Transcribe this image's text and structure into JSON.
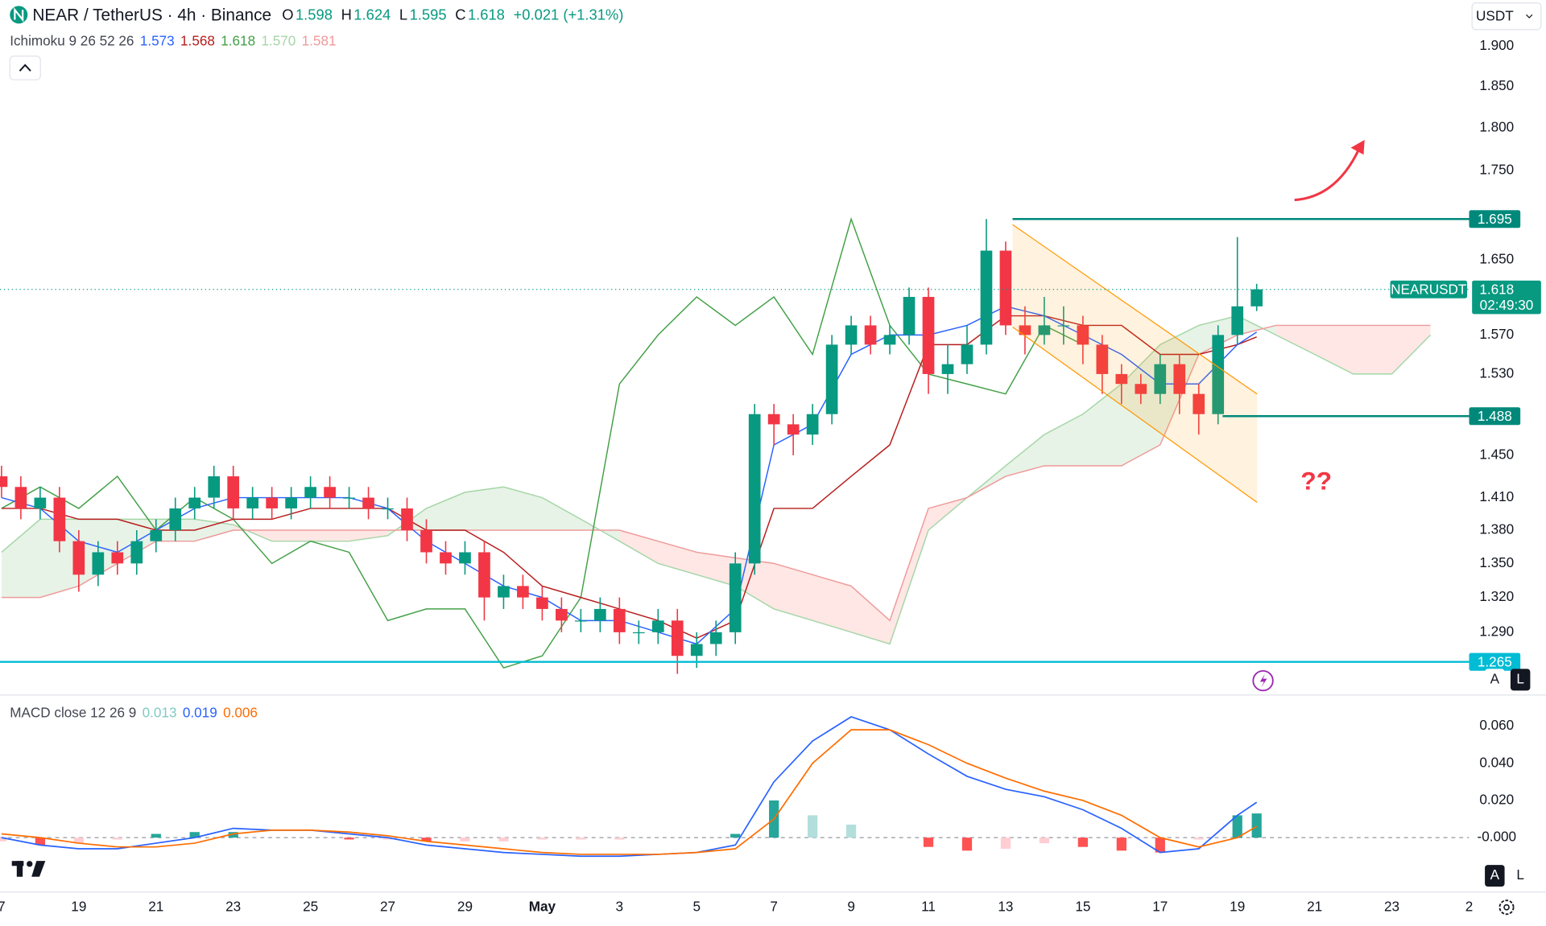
{
  "header": {
    "title": "NEAR / TetherUS · 4h · Binance",
    "ohlc": [
      [
        "O",
        "1.598"
      ],
      [
        "H",
        "1.624"
      ],
      [
        "L",
        "1.595"
      ],
      [
        "C",
        "1.618"
      ]
    ],
    "change": "+0.021 (+1.31%)",
    "currency": "USDT"
  },
  "legends": {
    "ichimoku": {
      "name": "Ichimoku 9 26 52 26",
      "values": [
        "1.573",
        "1.568",
        "1.618",
        "1.570",
        "1.581"
      ],
      "colors": [
        "#2962ff",
        "#b71c1c",
        "#43a047",
        "#a5d6a7",
        "#ef9a9a"
      ]
    },
    "macd": {
      "name": "MACD close 12 26 9",
      "values": [
        "0.013",
        "0.019",
        "0.006"
      ],
      "colors": [
        "#80cbc4",
        "#2962ff",
        "#ff6d00"
      ]
    }
  },
  "annotations": {
    "question": "??"
  },
  "scale_buttons": {
    "main": [
      "A",
      "L"
    ],
    "macd": [
      "A",
      "L"
    ]
  },
  "chart_data": [
    {
      "type": "candlestick",
      "log_scale": true,
      "grid": false,
      "xlim": [
        16.96,
        55.0
      ],
      "ylim": [
        1.238,
        1.959
      ],
      "yticks": [
        {
          "value": 1.9,
          "label": "1.900"
        },
        {
          "value": 1.85,
          "label": "1.850"
        },
        {
          "value": 1.8,
          "label": "1.800"
        },
        {
          "value": 1.75,
          "label": "1.750"
        },
        {
          "value": 1.65,
          "label": "1.650"
        },
        {
          "value": 1.57,
          "label": "1.570"
        },
        {
          "value": 1.53,
          "label": "1.530"
        },
        {
          "value": 1.45,
          "label": "1.450"
        },
        {
          "value": 1.41,
          "label": "1.410"
        },
        {
          "value": 1.38,
          "label": "1.380"
        },
        {
          "value": 1.35,
          "label": "1.350"
        },
        {
          "value": 1.32,
          "label": "1.320"
        },
        {
          "value": 1.29,
          "label": "1.290"
        }
      ],
      "up_color": "#089981",
      "down_color": "#f23645",
      "x": [
        17,
        17.5,
        18,
        18.5,
        19,
        19.5,
        20,
        20.5,
        21,
        21.5,
        22,
        22.5,
        23,
        23.5,
        24,
        24.5,
        25,
        25.5,
        26,
        26.5,
        27,
        27.5,
        28,
        28.5,
        29,
        29.5,
        30,
        30.5,
        31,
        31.5,
        32,
        32.5,
        33,
        33.5,
        34,
        34.5,
        35,
        35.5,
        36,
        36.5,
        37,
        37.5,
        38,
        38.5,
        39,
        39.5,
        40,
        40.5,
        41,
        41.5,
        42,
        42.5,
        43,
        43.5,
        44,
        44.5,
        45,
        45.5,
        46,
        46.5,
        47,
        47.5,
        48,
        48.5,
        49,
        49.5
      ],
      "open": [
        1.43,
        1.42,
        1.4,
        1.41,
        1.37,
        1.34,
        1.36,
        1.35,
        1.37,
        1.38,
        1.4,
        1.41,
        1.43,
        1.4,
        1.41,
        1.4,
        1.41,
        1.42,
        1.41,
        1.41,
        1.4,
        1.4,
        1.38,
        1.36,
        1.35,
        1.36,
        1.32,
        1.33,
        1.32,
        1.31,
        1.3,
        1.3,
        1.31,
        1.29,
        1.29,
        1.3,
        1.27,
        1.28,
        1.29,
        1.35,
        1.49,
        1.48,
        1.47,
        1.49,
        1.56,
        1.58,
        1.56,
        1.57,
        1.61,
        1.53,
        1.54,
        1.56,
        1.66,
        1.58,
        1.57,
        1.58,
        1.58,
        1.56,
        1.53,
        1.52,
        1.51,
        1.54,
        1.51,
        1.49,
        1.57,
        1.6
      ],
      "high": [
        1.44,
        1.43,
        1.42,
        1.42,
        1.38,
        1.37,
        1.37,
        1.38,
        1.39,
        1.41,
        1.42,
        1.44,
        1.44,
        1.42,
        1.42,
        1.42,
        1.43,
        1.43,
        1.42,
        1.42,
        1.41,
        1.41,
        1.39,
        1.37,
        1.37,
        1.37,
        1.34,
        1.34,
        1.33,
        1.32,
        1.31,
        1.32,
        1.32,
        1.3,
        1.31,
        1.31,
        1.29,
        1.3,
        1.36,
        1.5,
        1.5,
        1.49,
        1.5,
        1.57,
        1.59,
        1.59,
        1.58,
        1.62,
        1.62,
        1.56,
        1.58,
        1.695,
        1.67,
        1.6,
        1.61,
        1.6,
        1.59,
        1.57,
        1.54,
        1.53,
        1.55,
        1.55,
        1.52,
        1.58,
        1.675,
        1.624
      ],
      "low": [
        1.41,
        1.39,
        1.39,
        1.36,
        1.325,
        1.33,
        1.34,
        1.34,
        1.36,
        1.37,
        1.39,
        1.4,
        1.39,
        1.39,
        1.39,
        1.39,
        1.4,
        1.4,
        1.4,
        1.39,
        1.39,
        1.37,
        1.35,
        1.34,
        1.34,
        1.3,
        1.31,
        1.31,
        1.3,
        1.29,
        1.29,
        1.29,
        1.28,
        1.28,
        1.28,
        1.255,
        1.26,
        1.27,
        1.28,
        1.34,
        1.46,
        1.45,
        1.46,
        1.48,
        1.55,
        1.55,
        1.55,
        1.56,
        1.51,
        1.51,
        1.53,
        1.55,
        1.57,
        1.55,
        1.56,
        1.56,
        1.54,
        1.51,
        1.5,
        1.5,
        1.5,
        1.49,
        1.47,
        1.48,
        1.56,
        1.595
      ],
      "close": [
        1.42,
        1.4,
        1.41,
        1.37,
        1.34,
        1.36,
        1.35,
        1.37,
        1.38,
        1.4,
        1.41,
        1.43,
        1.4,
        1.41,
        1.4,
        1.41,
        1.42,
        1.41,
        1.41,
        1.4,
        1.4,
        1.38,
        1.36,
        1.35,
        1.36,
        1.32,
        1.33,
        1.32,
        1.31,
        1.3,
        1.3,
        1.31,
        1.29,
        1.29,
        1.3,
        1.27,
        1.28,
        1.29,
        1.35,
        1.49,
        1.48,
        1.47,
        1.49,
        1.56,
        1.58,
        1.56,
        1.57,
        1.61,
        1.53,
        1.54,
        1.56,
        1.66,
        1.58,
        1.57,
        1.58,
        1.58,
        1.56,
        1.53,
        1.52,
        1.51,
        1.54,
        1.51,
        1.49,
        1.57,
        1.6,
        1.618
      ],
      "cloud_colors": {
        "bullish": "rgba(67,160,71,0.13)",
        "bearish": "rgba(244,67,54,0.13)"
      },
      "span_a": {
        "color": "#a5d6a7",
        "x": [
          17,
          18,
          19,
          20,
          21,
          22,
          23,
          24,
          25,
          26,
          27,
          28,
          29,
          30,
          31,
          32,
          33,
          34,
          35,
          36,
          37,
          38,
          39,
          40,
          41,
          42,
          43,
          44,
          45,
          46,
          47,
          48,
          49,
          50,
          51,
          52,
          53,
          54
        ],
        "values": [
          1.36,
          1.39,
          1.39,
          1.39,
          1.39,
          1.39,
          1.385,
          1.37,
          1.37,
          1.37,
          1.375,
          1.4,
          1.415,
          1.42,
          1.41,
          1.39,
          1.37,
          1.35,
          1.34,
          1.33,
          1.31,
          1.3,
          1.29,
          1.28,
          1.38,
          1.41,
          1.44,
          1.47,
          1.49,
          1.52,
          1.56,
          1.58,
          1.59,
          1.57,
          1.55,
          1.53,
          1.53,
          1.57
        ]
      },
      "span_b": {
        "color": "#ef9a9a",
        "x": [
          17,
          18,
          19,
          20,
          21,
          22,
          23,
          24,
          25,
          26,
          27,
          28,
          29,
          30,
          31,
          32,
          33,
          34,
          35,
          36,
          37,
          38,
          39,
          40,
          41,
          42,
          43,
          44,
          45,
          46,
          47,
          48,
          49,
          50,
          51,
          52,
          53,
          54
        ],
        "values": [
          1.32,
          1.32,
          1.33,
          1.35,
          1.37,
          1.37,
          1.38,
          1.38,
          1.38,
          1.38,
          1.38,
          1.38,
          1.38,
          1.38,
          1.38,
          1.38,
          1.38,
          1.37,
          1.36,
          1.355,
          1.35,
          1.34,
          1.33,
          1.3,
          1.4,
          1.41,
          1.43,
          1.44,
          1.44,
          1.44,
          1.46,
          1.55,
          1.57,
          1.58,
          1.58,
          1.58,
          1.58,
          1.58
        ]
      },
      "lagging": {
        "color": "#43a047",
        "x": [
          17,
          18,
          19,
          20,
          21,
          22,
          23,
          24,
          25,
          26,
          27,
          28,
          29,
          30,
          31,
          32,
          33,
          34,
          35,
          36,
          37,
          38,
          39,
          40,
          41,
          42,
          43,
          44,
          45
        ],
        "values": [
          1.4,
          1.42,
          1.4,
          1.43,
          1.38,
          1.41,
          1.39,
          1.35,
          1.37,
          1.36,
          1.3,
          1.31,
          1.31,
          1.26,
          1.27,
          1.32,
          1.52,
          1.57,
          1.61,
          1.58,
          1.61,
          1.55,
          1.695,
          1.58,
          1.53,
          1.52,
          1.51,
          1.58,
          1.56
        ]
      },
      "base": {
        "color": "#b71c1c",
        "x": [
          17,
          18,
          19,
          20,
          21,
          22,
          23,
          24,
          25,
          26,
          27,
          28,
          29,
          30,
          31,
          32,
          33,
          34,
          35,
          36,
          37,
          38,
          39,
          40,
          41,
          42,
          43,
          44,
          45,
          46,
          47,
          48,
          49,
          49.5
        ],
        "values": [
          1.4,
          1.4,
          1.39,
          1.39,
          1.38,
          1.38,
          1.39,
          1.39,
          1.4,
          1.4,
          1.4,
          1.38,
          1.38,
          1.36,
          1.33,
          1.32,
          1.31,
          1.3,
          1.285,
          1.3,
          1.4,
          1.4,
          1.43,
          1.46,
          1.56,
          1.56,
          1.59,
          1.59,
          1.58,
          1.58,
          1.55,
          1.55,
          1.56,
          1.568
        ]
      },
      "conversion": {
        "color": "#2962ff",
        "x": [
          17,
          18,
          19,
          20,
          21,
          22,
          23,
          24,
          25,
          26,
          27,
          28,
          29,
          30,
          31,
          32,
          33,
          34,
          35,
          36,
          37,
          38,
          39,
          40,
          41,
          42,
          43,
          44,
          45,
          46,
          47,
          48,
          49,
          49.5
        ],
        "values": [
          1.41,
          1.4,
          1.37,
          1.36,
          1.38,
          1.4,
          1.41,
          1.41,
          1.41,
          1.41,
          1.4,
          1.37,
          1.35,
          1.33,
          1.32,
          1.3,
          1.3,
          1.29,
          1.28,
          1.31,
          1.46,
          1.48,
          1.55,
          1.57,
          1.57,
          1.58,
          1.6,
          1.59,
          1.57,
          1.55,
          1.52,
          1.52,
          1.56,
          1.573
        ]
      },
      "levels": [
        {
          "value": 1.695,
          "color": "#00897b"
        },
        {
          "value": 1.488,
          "color": "#00897b"
        },
        {
          "value": 1.265,
          "color": "#00bcd4"
        }
      ],
      "last_price": {
        "label": "NEARUSDT",
        "value": 1.618,
        "countdown": "02:49:30",
        "color": "#089981"
      }
    },
    {
      "type": "macd",
      "xlim": [
        16.96,
        55.0
      ],
      "ylim": [
        -0.029,
        0.077
      ],
      "yticks": [
        {
          "value": 0.06,
          "label": "0.060"
        },
        {
          "value": 0.04,
          "label": "0.040"
        },
        {
          "value": 0.02,
          "label": "0.020"
        },
        {
          "value": 0,
          "label": "-0.000"
        }
      ],
      "zero_line": true,
      "xticks": [
        {
          "value": 17,
          "label": "7"
        },
        19,
        21,
        23,
        25,
        27,
        29,
        {
          "value": 31,
          "label": "May"
        },
        {
          "value": 33,
          "label": "3"
        },
        {
          "value": 35,
          "label": "5"
        },
        {
          "value": 37,
          "label": "7"
        },
        {
          "value": 39,
          "label": "9"
        },
        {
          "value": 41,
          "label": "11"
        },
        {
          "value": 43,
          "label": "13"
        },
        {
          "value": 45,
          "label": "15"
        },
        {
          "value": 47,
          "label": "17"
        },
        {
          "value": 49,
          "label": "19"
        },
        {
          "value": 51,
          "label": "21"
        },
        {
          "value": 53,
          "label": "23"
        },
        {
          "value": 55,
          "label": "2"
        }
      ],
      "x": [
        17,
        18,
        19,
        20,
        21,
        22,
        23,
        24,
        25,
        26,
        27,
        28,
        29,
        30,
        31,
        32,
        33,
        34,
        35,
        36,
        37,
        38,
        39,
        40,
        41,
        42,
        43,
        44,
        45,
        46,
        47,
        48,
        49,
        49.5
      ],
      "hist_colors": {
        "rising_pos": "#26a69a",
        "falling_pos": "#b2dfdb",
        "rising_neg": "#ffcdd2",
        "falling_neg": "#ff5252"
      },
      "histogram": [
        -0.002,
        -0.004,
        -0.003,
        -0.001,
        0.002,
        0.003,
        0.003,
        0.0,
        0.0,
        -0.001,
        -0.001,
        -0.002,
        -0.002,
        -0.002,
        -0.001,
        -0.001,
        -0.001,
        0.0,
        0.0,
        0.002,
        0.02,
        0.012,
        0.007,
        0.0,
        -0.005,
        -0.007,
        -0.006,
        -0.003,
        -0.005,
        -0.007,
        -0.008,
        -0.001,
        0.012,
        0.013
      ],
      "series": [
        {
          "color": "#2962ff",
          "values": [
            0.0,
            -0.004,
            -0.006,
            -0.006,
            -0.003,
            0.0,
            0.005,
            0.004,
            0.004,
            0.002,
            0.0,
            -0.004,
            -0.006,
            -0.008,
            -0.009,
            -0.01,
            -0.01,
            -0.009,
            -0.008,
            -0.004,
            0.03,
            0.052,
            0.065,
            0.058,
            0.045,
            0.033,
            0.026,
            0.022,
            0.015,
            0.005,
            -0.008,
            -0.006,
            0.012,
            0.019
          ]
        },
        {
          "color": "#ff6d00",
          "values": [
            0.002,
            0.0,
            -0.003,
            -0.005,
            -0.005,
            -0.003,
            0.002,
            0.004,
            0.004,
            0.003,
            0.001,
            -0.002,
            -0.004,
            -0.006,
            -0.008,
            -0.009,
            -0.009,
            -0.009,
            -0.008,
            -0.006,
            0.01,
            0.04,
            0.058,
            0.058,
            0.05,
            0.04,
            0.032,
            0.025,
            0.02,
            0.012,
            0.0,
            -0.005,
            0.0,
            0.006
          ]
        }
      ]
    }
  ]
}
